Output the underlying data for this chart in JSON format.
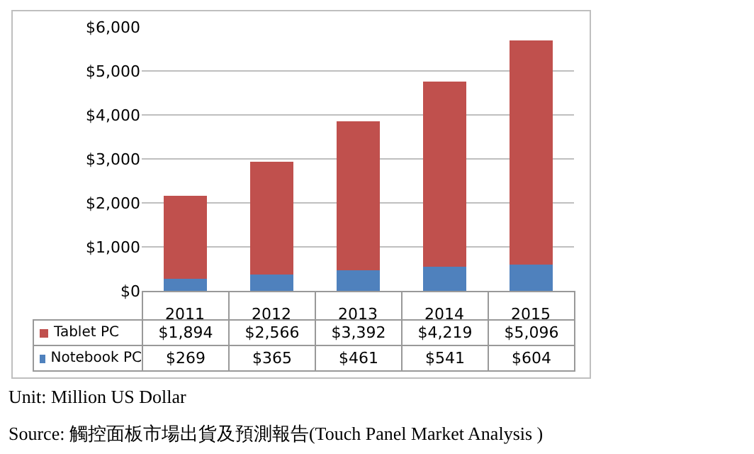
{
  "chart_data": {
    "type": "bar",
    "stacked": true,
    "categories": [
      "2011",
      "2012",
      "2013",
      "2014",
      "2015"
    ],
    "series": [
      {
        "name": "Notebook PC",
        "color": "#4f81bd",
        "values": [
          269,
          365,
          461,
          541,
          604
        ],
        "value_labels": [
          "$269",
          "$365",
          "$461",
          "$541",
          "$604"
        ]
      },
      {
        "name": "Tablet PC",
        "color": "#c0504d",
        "values": [
          1894,
          2566,
          3392,
          4219,
          5096
        ],
        "value_labels": [
          "$1,894",
          "$2,566",
          "$3,392",
          "$4,219",
          "$5,096"
        ]
      }
    ],
    "ylim": [
      0,
      6000
    ],
    "yticks": [
      {
        "value": 0,
        "label": "$0"
      },
      {
        "value": 1000,
        "label": "$1,000"
      },
      {
        "value": 2000,
        "label": "$2,000"
      },
      {
        "value": 3000,
        "label": "$3,000"
      },
      {
        "value": 4000,
        "label": "$4,000"
      },
      {
        "value": 5000,
        "label": "$5,000"
      },
      {
        "value": 6000,
        "label": "$6,000"
      }
    ],
    "grid": "y",
    "legend": "bottom",
    "annotations": [
      "Unit: Million US Dollar",
      "Source: 觸控面板市場出貨及預測報告(Touch Panel Market Analysis )"
    ]
  }
}
